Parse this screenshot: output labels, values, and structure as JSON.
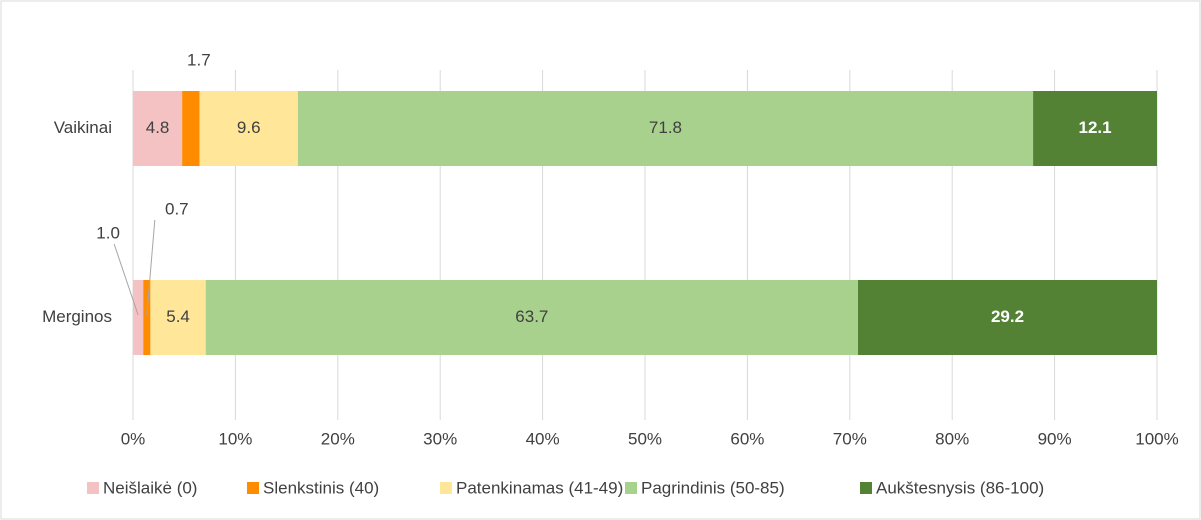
{
  "chart_data": {
    "type": "stacked-bar-horizontal",
    "categories": [
      "Vaikinai",
      "Merginos"
    ],
    "series": [
      {
        "name": "Neišlaikė (0)",
        "color": "#f4c2c2",
        "values": [
          4.8,
          1.0
        ],
        "value_labels": [
          "4.8",
          "1.0"
        ]
      },
      {
        "name": "Slenkstinis (40)",
        "color": "#ff8c00",
        "values": [
          1.7,
          0.7
        ]
      },
      {
        "name": "Patenkinamas (41-49)",
        "color": "#ffe699",
        "values": [
          9.6,
          5.4
        ]
      },
      {
        "name": "Pagrindinis (50-85)",
        "color": "#a9d18e",
        "values": [
          71.8,
          63.7
        ]
      },
      {
        "name": "Aukštesnysis (86-100)",
        "color": "#548235",
        "values": [
          12.1,
          29.2
        ]
      }
    ],
    "xlim": [
      0,
      100
    ],
    "xticks": [
      {
        "value": 0,
        "label": "0%"
      },
      {
        "value": 10,
        "label": "10%"
      },
      {
        "value": 20,
        "label": "20%"
      },
      {
        "value": 30,
        "label": "30%"
      },
      {
        "value": 40,
        "label": "40%"
      },
      {
        "value": 50,
        "label": "50%"
      },
      {
        "value": 60,
        "label": "60%"
      },
      {
        "value": 70,
        "label": "70%"
      },
      {
        "value": 80,
        "label": "80%"
      },
      {
        "value": 90,
        "label": "90%"
      },
      {
        "value": 100,
        "label": "100%"
      }
    ],
    "grid": true,
    "legend": "bottom"
  }
}
